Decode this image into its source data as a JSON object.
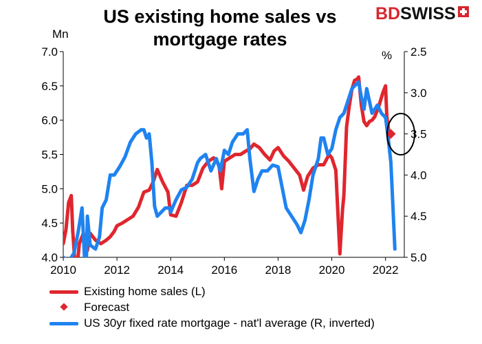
{
  "title": "US existing home sales vs mortgage rates",
  "brand": {
    "bd": "BD",
    "swiss": "SWISS"
  },
  "colors": {
    "sales": "#e0262e",
    "mortgage": "#1f83f0"
  },
  "chart_data": {
    "type": "line",
    "title": "US existing home sales vs mortgage rates",
    "ylabel_left": "Mn",
    "ylabel_right": "%",
    "xlim": [
      2010,
      2022.7
    ],
    "ylim_left": [
      4.0,
      7.0
    ],
    "ylim_right": [
      5.0,
      2.5
    ],
    "right_axis_inverted": true,
    "x_ticks": [
      "2010",
      "2012",
      "2014",
      "2016",
      "2018",
      "2020",
      "2022"
    ],
    "y_ticks_left": [
      "4.0",
      "4.5",
      "5.0",
      "5.5",
      "6.0",
      "6.5",
      "7.0"
    ],
    "y_ticks_right": [
      "2.5",
      "3.0",
      "3.5",
      "4.0",
      "4.5",
      "5.0"
    ],
    "grid": false,
    "legend_position": "bottom",
    "series": [
      {
        "name": "Existing home sales (L)",
        "axis": "left",
        "x": [
          2010.0,
          2010.1,
          2010.2,
          2010.3,
          2010.35,
          2010.42,
          2010.5,
          2010.6,
          2010.75,
          2010.9,
          2011.0,
          2011.2,
          2011.4,
          2011.6,
          2011.75,
          2011.9,
          2012.0,
          2012.2,
          2012.4,
          2012.6,
          2012.8,
          2013.0,
          2013.2,
          2013.35,
          2013.5,
          2013.7,
          2013.9,
          2014.0,
          2014.2,
          2014.4,
          2014.6,
          2014.8,
          2015.0,
          2015.2,
          2015.4,
          2015.6,
          2015.8,
          2015.9,
          2016.0,
          2016.2,
          2016.4,
          2016.6,
          2016.8,
          2016.95,
          2017.1,
          2017.3,
          2017.5,
          2017.7,
          2017.85,
          2018.0,
          2018.2,
          2018.4,
          2018.6,
          2018.8,
          2018.95,
          2019.1,
          2019.3,
          2019.5,
          2019.7,
          2019.9,
          2020.0,
          2020.15,
          2020.3,
          2020.4,
          2020.45,
          2020.55,
          2020.65,
          2020.75,
          2020.85,
          2020.95,
          2021.0,
          2021.1,
          2021.2,
          2021.3,
          2021.4,
          2021.5,
          2021.6,
          2021.75,
          2021.9,
          2022.0,
          2022.05,
          2022.15
        ],
        "values": [
          4.2,
          4.4,
          4.8,
          4.9,
          4.4,
          4.0,
          3.8,
          4.2,
          4.35,
          4.1,
          4.35,
          4.25,
          4.2,
          4.25,
          4.3,
          4.38,
          4.46,
          4.5,
          4.55,
          4.6,
          4.73,
          4.95,
          4.98,
          5.1,
          5.28,
          5.1,
          4.95,
          4.62,
          4.6,
          4.8,
          5.05,
          5.05,
          5.1,
          5.3,
          5.4,
          5.45,
          5.35,
          5.0,
          5.4,
          5.45,
          5.5,
          5.5,
          5.55,
          5.58,
          5.65,
          5.6,
          5.5,
          5.42,
          5.55,
          5.6,
          5.48,
          5.4,
          5.3,
          5.2,
          4.98,
          5.18,
          5.3,
          5.35,
          5.35,
          5.5,
          5.45,
          5.27,
          4.05,
          4.7,
          4.9,
          5.9,
          6.2,
          6.45,
          6.58,
          6.6,
          6.63,
          6.22,
          5.98,
          5.92,
          5.98,
          6.0,
          6.05,
          6.2,
          6.4,
          6.5,
          6.05,
          5.75
        ]
      },
      {
        "name": "Forecast",
        "axis": "left",
        "type": "scatter",
        "x": [
          2022.2
        ],
        "values": [
          5.8
        ]
      },
      {
        "name": "US 30yr fixed rate mortgage - nat'l average (R, inverted)",
        "axis": "right",
        "x": [
          2010.0,
          2010.2,
          2010.4,
          2010.55,
          2010.7,
          2010.8,
          2010.85,
          2010.9,
          2011.0,
          2011.2,
          2011.35,
          2011.45,
          2011.6,
          2011.75,
          2011.9,
          2012.1,
          2012.3,
          2012.5,
          2012.7,
          2012.9,
          2013.0,
          2013.1,
          2013.2,
          2013.3,
          2013.4,
          2013.5,
          2013.65,
          2013.8,
          2013.95,
          2014.0,
          2014.2,
          2014.4,
          2014.6,
          2014.8,
          2015.0,
          2015.1,
          2015.3,
          2015.5,
          2015.7,
          2015.85,
          2016.0,
          2016.15,
          2016.3,
          2016.5,
          2016.7,
          2016.85,
          2016.95,
          2017.1,
          2017.25,
          2017.4,
          2017.6,
          2017.8,
          2018.0,
          2018.15,
          2018.3,
          2018.5,
          2018.7,
          2018.85,
          2019.0,
          2019.15,
          2019.3,
          2019.5,
          2019.6,
          2019.7,
          2019.85,
          2020.0,
          2020.15,
          2020.3,
          2020.45,
          2020.6,
          2020.75,
          2020.9,
          2021.0,
          2021.1,
          2021.2,
          2021.3,
          2021.5,
          2021.7,
          2021.85,
          2022.0,
          2022.1,
          2022.2,
          2022.35
        ],
        "values": [
          5.0,
          5.05,
          4.95,
          4.7,
          4.4,
          5.05,
          5.2,
          4.5,
          4.85,
          4.9,
          4.75,
          4.4,
          4.3,
          4.0,
          4.0,
          3.9,
          3.78,
          3.6,
          3.5,
          3.45,
          3.45,
          3.55,
          3.5,
          3.85,
          4.38,
          4.5,
          4.45,
          4.4,
          4.4,
          4.45,
          4.3,
          4.18,
          4.15,
          4.05,
          3.85,
          3.8,
          3.75,
          3.95,
          3.8,
          3.95,
          3.7,
          3.75,
          3.6,
          3.5,
          3.5,
          3.45,
          3.8,
          4.2,
          4.05,
          3.95,
          3.95,
          3.88,
          3.9,
          4.15,
          4.4,
          4.5,
          4.6,
          4.7,
          4.55,
          4.3,
          4.0,
          3.8,
          3.55,
          3.55,
          3.75,
          3.68,
          3.45,
          3.3,
          3.25,
          3.1,
          2.95,
          2.9,
          2.87,
          3.05,
          3.2,
          2.95,
          3.25,
          3.15,
          3.25,
          3.3,
          3.55,
          3.85,
          4.9
        ]
      }
    ]
  },
  "legend": [
    {
      "label": "Existing home sales (L)"
    },
    {
      "label": "Forecast"
    },
    {
      "label": "US 30yr fixed rate mortgage - nat'l average (R, inverted)"
    }
  ]
}
